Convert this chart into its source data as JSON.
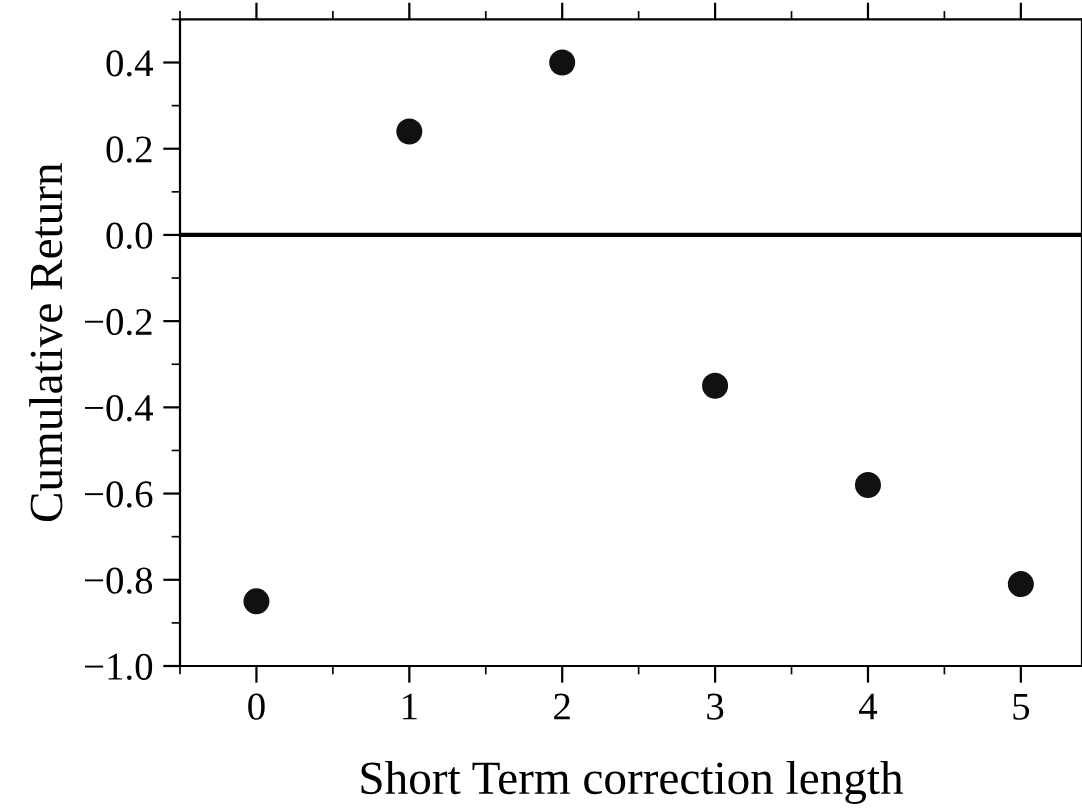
{
  "chart_data": {
    "type": "scatter",
    "xlabel": "Short Term correction length",
    "ylabel": "Cumulative Return",
    "x": [
      0,
      1,
      2,
      3,
      4,
      5
    ],
    "series": [
      {
        "color": "#111111",
        "values": [
          -0.85,
          0.24,
          0.4,
          -0.35,
          -0.58,
          -0.81
        ]
      }
    ],
    "xlim": [
      -0.5,
      5.4
    ],
    "ylim": [
      -1.0,
      0.5
    ],
    "xticks": [
      0,
      1,
      2,
      3,
      4,
      5
    ],
    "yticks": [
      {
        "value": -1.0,
        "label": "−1.0"
      },
      {
        "value": -0.8,
        "label": "−0.8"
      },
      {
        "value": -0.6,
        "label": "−0.6"
      },
      {
        "value": -0.4,
        "label": "−0.4"
      },
      {
        "value": -0.2,
        "label": "−0.2"
      },
      {
        "value": 0.0,
        "label": "0.0"
      },
      {
        "value": 0.2,
        "label": "0.2"
      },
      {
        "value": 0.4,
        "label": "0.4"
      }
    ],
    "ref_lines": [
      {
        "axis": "y",
        "value": 0.0,
        "color": "#000000"
      }
    ],
    "marker": "circle",
    "grid": false,
    "legend": false
  }
}
